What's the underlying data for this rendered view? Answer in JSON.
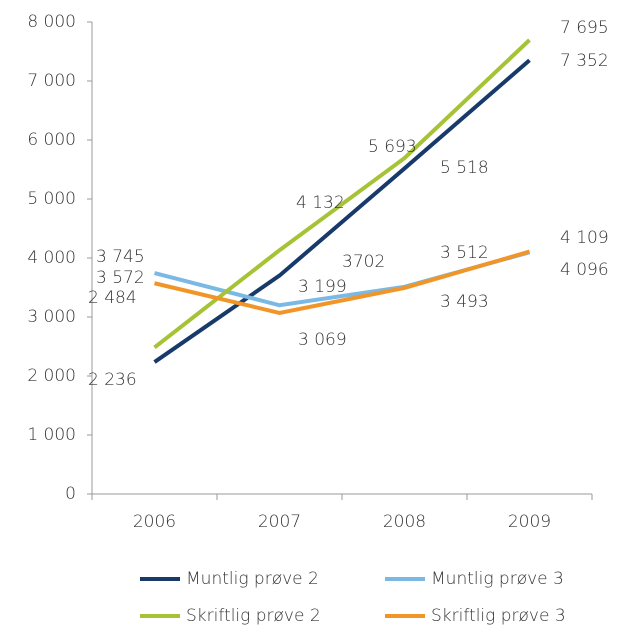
{
  "chart_data": {
    "type": "line",
    "categories": [
      "2006",
      "2007",
      "2008",
      "2009"
    ],
    "series": [
      {
        "name": "Muntlig prøve 2",
        "color": "#173a6b",
        "values": [
          2236,
          3702,
          5518,
          7352
        ],
        "value_labels": [
          "2 236",
          "3702",
          "5 518",
          "7 352"
        ]
      },
      {
        "name": "Muntlig prøve 3",
        "color": "#7ab9e3",
        "values": [
          3745,
          3199,
          3512,
          4096
        ],
        "value_labels": [
          "3 745",
          "3 199",
          "3 512",
          "4 096"
        ]
      },
      {
        "name": "Skriftlig prøve 2",
        "color": "#a5c334",
        "values": [
          2484,
          4132,
          5693,
          7695
        ],
        "value_labels": [
          "2 484",
          "4 132",
          "5 693",
          "7 695"
        ]
      },
      {
        "name": "Skriftlig prøve 3",
        "color": "#f29528",
        "values": [
          3572,
          3069,
          3493,
          4109
        ],
        "value_labels": [
          "3 572",
          "3 069",
          "3 493",
          "4 109"
        ]
      }
    ],
    "ylim": [
      0,
      8000
    ],
    "yticks": [
      0,
      {
        "value": 1000,
        "label": "1 000"
      },
      {
        "value": 2000,
        "label": "2 000"
      },
      {
        "value": 3000,
        "label": "3 000"
      },
      {
        "value": 4000,
        "label": "4 000"
      },
      {
        "value": 5000,
        "label": "5 000"
      },
      {
        "value": 6000,
        "label": "6 000"
      },
      {
        "value": 7000,
        "label": "7 000"
      },
      {
        "value": 8000,
        "label": "8 000"
      }
    ]
  }
}
